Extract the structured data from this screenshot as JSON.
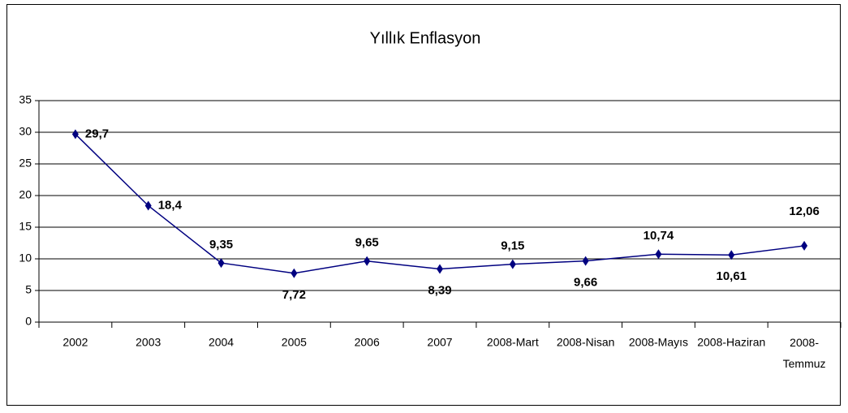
{
  "chart_data": {
    "type": "line",
    "title": "Yıllık Enflasyon",
    "categories": [
      "2002",
      "2003",
      "2004",
      "2005",
      "2006",
      "2007",
      "2008-Mart",
      "2008-Nisan",
      "2008-Mayıs",
      "2008-Haziran",
      "2008-Temmuz"
    ],
    "values": [
      29.7,
      18.4,
      9.35,
      7.72,
      9.65,
      8.39,
      9.15,
      9.66,
      10.74,
      10.61,
      12.06
    ],
    "value_labels": [
      "29,7",
      "18,4",
      "9,35",
      "7,72",
      "9,65",
      "8,39",
      "9,15",
      "9,66",
      "10,74",
      "10,61",
      "12,06"
    ],
    "color": "#000080",
    "ylim": [
      0,
      35
    ],
    "yticks": [
      0,
      5,
      10,
      15,
      20,
      25,
      30,
      35
    ],
    "grid": true
  }
}
